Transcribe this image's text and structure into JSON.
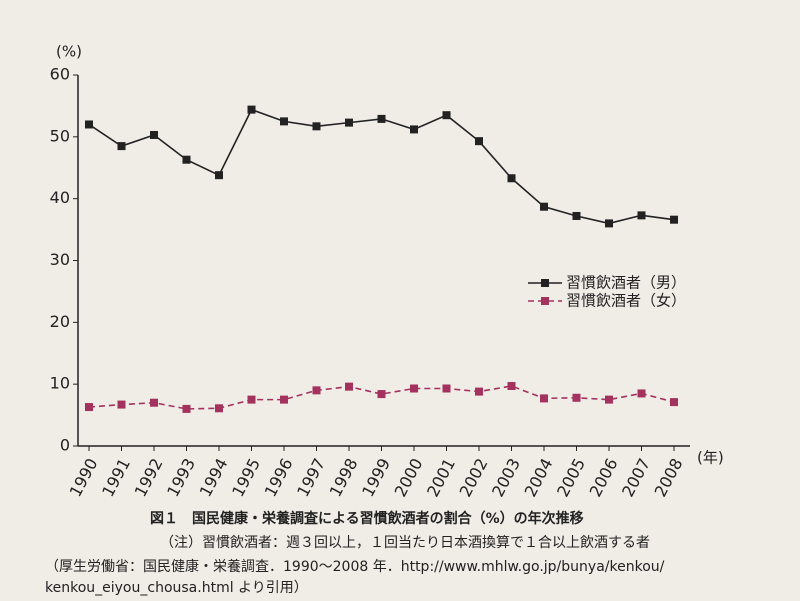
{
  "chart_data": {
    "type": "line",
    "y_label": "(%)",
    "x_label": "(年)",
    "categories": [
      "1990",
      "1991",
      "1992",
      "1993",
      "1994",
      "1995",
      "1996",
      "1997",
      "1998",
      "1999",
      "2000",
      "2001",
      "2002",
      "2003",
      "2004",
      "2005",
      "2006",
      "2007",
      "2008"
    ],
    "series": [
      {
        "name": "習慣飲酒者（男）",
        "color": "#222222",
        "line_style": "solid",
        "values": [
          52,
          48.5,
          50.3,
          46.3,
          43.8,
          54.4,
          52.5,
          51.7,
          52.3,
          52.9,
          51.2,
          53.5,
          49.3,
          43.3,
          38.7,
          37.2,
          36,
          37.3,
          36.6
        ]
      },
      {
        "name": "習慣飲酒者（女）",
        "color": "#a3325e",
        "line_style": "dashed",
        "values": [
          6.3,
          6.7,
          7,
          6,
          6.1,
          7.5,
          7.5,
          9,
          9.6,
          8.4,
          9.3,
          9.3,
          8.8,
          9.7,
          7.7,
          7.8,
          7.5,
          8.5,
          7.1
        ]
      }
    ],
    "ylim": [
      0,
      60
    ],
    "yticks": [
      0,
      10,
      20,
      30,
      40,
      50,
      60
    ],
    "grid": false,
    "caption": "図１　国民健康・栄養調査による習慣飲酒者の割合（%）の年次推移",
    "note": "（注）習慣飲酒者：週３回以上，１回当たり日本酒換算で１合以上飲酒する者",
    "source": [
      "（厚生労働省：国民健康・栄養調査．1990～2008 年．http://www.mhlw.go.jp/bunya/kenkou/",
      "kenkou_eiyou_chousa.html より引用）"
    ]
  }
}
